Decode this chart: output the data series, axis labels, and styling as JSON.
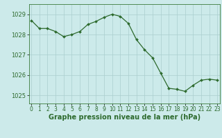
{
  "x": [
    0,
    1,
    2,
    3,
    4,
    5,
    6,
    7,
    8,
    9,
    10,
    11,
    12,
    13,
    14,
    15,
    16,
    17,
    18,
    19,
    20,
    21,
    22,
    23
  ],
  "y": [
    1028.7,
    1028.3,
    1028.3,
    1028.15,
    1027.9,
    1028.0,
    1028.15,
    1028.5,
    1028.65,
    1028.85,
    1029.0,
    1028.9,
    1028.55,
    1027.75,
    1027.25,
    1026.85,
    1026.1,
    1025.35,
    1025.3,
    1025.2,
    1025.5,
    1025.75,
    1025.8,
    1025.75
  ],
  "line_color": "#2d6a2d",
  "marker_color": "#2d6a2d",
  "bg_color": "#cceaea",
  "grid_color": "#aacece",
  "title": "Graphe pression niveau de la mer (hPa)",
  "xlabel_ticks": [
    "0",
    "1",
    "2",
    "3",
    "4",
    "5",
    "6",
    "7",
    "8",
    "9",
    "10",
    "11",
    "12",
    "13",
    "14",
    "15",
    "16",
    "17",
    "18",
    "19",
    "20",
    "21",
    "22",
    "23"
  ],
  "yticks": [
    1025,
    1026,
    1027,
    1028,
    1029
  ],
  "ylim": [
    1024.6,
    1029.5
  ],
  "xlim": [
    -0.3,
    23.3
  ],
  "title_color": "#2d6a2d",
  "title_fontsize": 7.0,
  "tick_fontsize": 6.0,
  "tick_color": "#2d6a2d",
  "spine_color": "#3a7a3a"
}
